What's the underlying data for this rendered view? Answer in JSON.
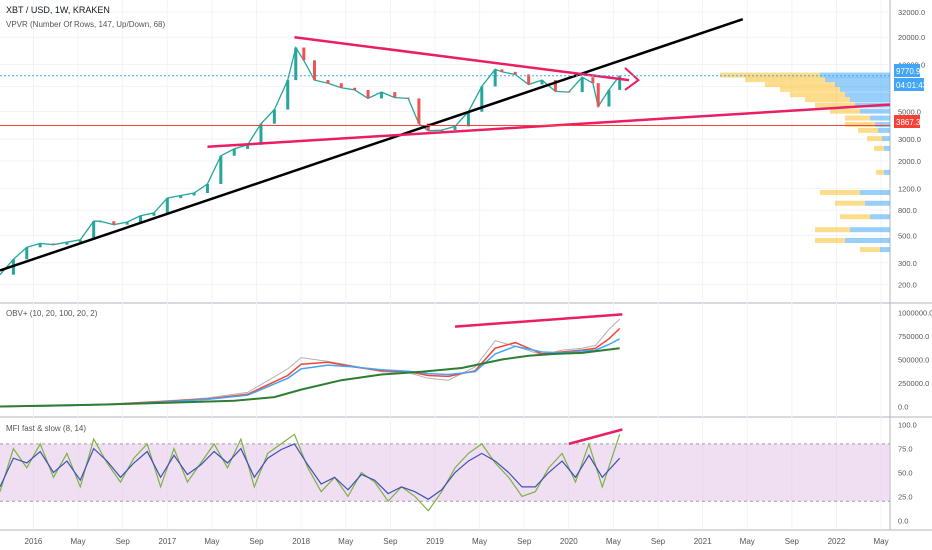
{
  "header": {
    "title": "XBT / USD, 1W, KRAKEN",
    "vpvr_label": "VPVR (Number Of Rows, 147, Up/Down, 68)",
    "obv_label": "OBV+ (10, 20, 100, 20, 2)",
    "mfi_label": "MFI fast & slow (8, 14)"
  },
  "colors": {
    "up_candle": "#26a69a",
    "down_candle": "#ef5350",
    "trendline": "#e91e63",
    "support_line": "#000000",
    "vpvr_up": "#fbc02d",
    "vpvr_down": "#42a5f5",
    "price_badge": "#42a5f5",
    "level_badge": "#f44336",
    "mfi_band": "#e1bee7"
  },
  "chart_data": [
    {
      "type": "line",
      "panel": "price",
      "log_scale": true,
      "x_tick_labels": [
        "2016",
        "May",
        "Sep",
        "2017",
        "May",
        "Sep",
        "2018",
        "May",
        "Sep",
        "2019",
        "May",
        "Sep",
        "2020",
        "May",
        "Sep",
        "2021",
        "May",
        "Sep",
        "2022",
        "May"
      ],
      "y_tick_labels": [
        "32000.0",
        "20000.0",
        "12000.0",
        "8000.0",
        "5000.0",
        "3000.0",
        "2000.0",
        "1200.0",
        "800.0",
        "500.0",
        "300.0",
        "200.0"
      ],
      "y_ticks": [
        32000,
        20000,
        12000,
        8000,
        5000,
        3000,
        2000,
        1200,
        800,
        500,
        300,
        200
      ],
      "ylim": [
        150,
        40000
      ],
      "xlim": [
        2015.75,
        2022.4
      ],
      "price_series": {
        "x": [
          2015.75,
          2015.85,
          2015.95,
          2016.05,
          2016.15,
          2016.25,
          2016.35,
          2016.45,
          2016.5,
          2016.6,
          2016.7,
          2016.8,
          2016.9,
          2017.0,
          2017.1,
          2017.2,
          2017.3,
          2017.4,
          2017.5,
          2017.6,
          2017.7,
          2017.8,
          2017.9,
          2017.96,
          2018.02,
          2018.1,
          2018.2,
          2018.3,
          2018.4,
          2018.5,
          2018.6,
          2018.7,
          2018.8,
          2018.88,
          2018.95,
          2019.05,
          2019.15,
          2019.25,
          2019.35,
          2019.45,
          2019.5,
          2019.6,
          2019.7,
          2019.8,
          2019.9,
          2020.0,
          2020.1,
          2020.18,
          2020.22,
          2020.3,
          2020.38
        ],
        "y": [
          240,
          320,
          400,
          430,
          420,
          440,
          460,
          650,
          650,
          610,
          640,
          720,
          760,
          1000,
          1050,
          1100,
          1300,
          2200,
          2500,
          2700,
          4000,
          5200,
          9000,
          16500,
          13000,
          9000,
          8500,
          7800,
          7500,
          6400,
          7200,
          6500,
          6400,
          4000,
          3500,
          3550,
          3800,
          5000,
          8000,
          11000,
          10500,
          10000,
          8300,
          9000,
          7300,
          7200,
          9500,
          8500,
          5500,
          7500,
          9770.9
        ]
      },
      "last_price": "9770.9",
      "countdown": "04:01:43",
      "level_price": "3867.3"
    },
    {
      "type": "line",
      "panel": "obv",
      "y_tick_labels": [
        "1000000.0",
        "750000.0",
        "500000.0",
        "250000.0",
        "0.0"
      ],
      "y_ticks": [
        1000000,
        750000,
        500000,
        250000,
        0
      ],
      "ylim": [
        -80000,
        1080000
      ],
      "series": [
        {
          "x": [
            2015.75,
            2016.2,
            2016.6,
            2017.0,
            2017.3,
            2017.6,
            2017.9,
            2018.0,
            2018.2,
            2018.4,
            2018.6,
            2018.8,
            2018.95,
            2019.1,
            2019.3,
            2019.45,
            2019.6,
            2019.8,
            2019.95,
            2020.1,
            2020.2,
            2020.3,
            2020.38
          ],
          "y": [
            0,
            10000,
            30000,
            60000,
            90000,
            150000,
            400000,
            520000,
            480000,
            430000,
            370000,
            360000,
            300000,
            280000,
            420000,
            700000,
            640000,
            550000,
            600000,
            620000,
            650000,
            820000,
            930000
          ]
        },
        {
          "x": [
            2015.75,
            2016.2,
            2016.6,
            2017.0,
            2017.3,
            2017.6,
            2017.9,
            2018.0,
            2018.2,
            2018.4,
            2018.6,
            2018.8,
            2018.95,
            2019.1,
            2019.3,
            2019.45,
            2019.6,
            2019.8,
            2019.95,
            2020.1,
            2020.2,
            2020.3,
            2020.38
          ],
          "y": [
            0,
            8000,
            25000,
            55000,
            80000,
            130000,
            330000,
            450000,
            470000,
            420000,
            380000,
            370000,
            330000,
            320000,
            380000,
            620000,
            680000,
            560000,
            580000,
            600000,
            620000,
            720000,
            830000
          ]
        },
        {
          "x": [
            2015.75,
            2016.2,
            2016.6,
            2017.0,
            2017.3,
            2017.6,
            2017.9,
            2018.0,
            2018.2,
            2018.4,
            2018.6,
            2018.8,
            2018.95,
            2019.1,
            2019.3,
            2019.45,
            2019.6,
            2019.8,
            2019.95,
            2020.1,
            2020.2,
            2020.3,
            2020.38
          ],
          "y": [
            0,
            7000,
            22000,
            50000,
            75000,
            120000,
            300000,
            400000,
            440000,
            420000,
            390000,
            375000,
            350000,
            340000,
            370000,
            560000,
            640000,
            580000,
            570000,
            590000,
            600000,
            660000,
            720000
          ]
        },
        {
          "x": [
            2015.75,
            2016.5,
            2017.0,
            2017.5,
            2017.8,
            2018.0,
            2018.3,
            2018.6,
            2018.9,
            2019.2,
            2019.5,
            2019.7,
            2019.9,
            2020.1,
            2020.38
          ],
          "y": [
            0,
            20000,
            40000,
            60000,
            100000,
            180000,
            280000,
            340000,
            370000,
            410000,
            500000,
            540000,
            560000,
            570000,
            620000
          ]
        }
      ]
    },
    {
      "type": "line",
      "panel": "mfi",
      "y_tick_labels": [
        "100.0",
        "75.0",
        "50.0",
        "25.0",
        "0.0"
      ],
      "y_ticks": [
        100,
        75,
        50,
        25,
        0
      ],
      "ylim": [
        -8,
        106
      ],
      "band": [
        20,
        80
      ],
      "series": [
        {
          "x": [
            2015.75,
            2015.85,
            2015.95,
            2016.05,
            2016.15,
            2016.25,
            2016.35,
            2016.45,
            2016.55,
            2016.65,
            2016.75,
            2016.85,
            2016.95,
            2017.05,
            2017.15,
            2017.25,
            2017.35,
            2017.45,
            2017.55,
            2017.65,
            2017.75,
            2017.85,
            2017.95,
            2018.05,
            2018.15,
            2018.25,
            2018.35,
            2018.45,
            2018.55,
            2018.65,
            2018.75,
            2018.85,
            2018.95,
            2019.05,
            2019.15,
            2019.25,
            2019.35,
            2019.45,
            2019.55,
            2019.65,
            2019.75,
            2019.85,
            2019.95,
            2020.05,
            2020.15,
            2020.25,
            2020.38
          ],
          "y": [
            30,
            75,
            55,
            80,
            45,
            70,
            35,
            85,
            60,
            40,
            65,
            80,
            35,
            75,
            40,
            60,
            80,
            55,
            85,
            35,
            70,
            80,
            90,
            55,
            30,
            45,
            25,
            50,
            40,
            20,
            35,
            25,
            10,
            30,
            55,
            70,
            80,
            60,
            45,
            25,
            30,
            55,
            70,
            40,
            80,
            35,
            90
          ]
        },
        {
          "x": [
            2015.75,
            2015.85,
            2015.95,
            2016.05,
            2016.15,
            2016.25,
            2016.35,
            2016.45,
            2016.55,
            2016.65,
            2016.75,
            2016.85,
            2016.95,
            2017.05,
            2017.15,
            2017.25,
            2017.35,
            2017.45,
            2017.55,
            2017.65,
            2017.75,
            2017.85,
            2017.95,
            2018.05,
            2018.15,
            2018.25,
            2018.35,
            2018.45,
            2018.55,
            2018.65,
            2018.75,
            2018.85,
            2018.95,
            2019.05,
            2019.15,
            2019.25,
            2019.35,
            2019.45,
            2019.55,
            2019.65,
            2019.75,
            2019.85,
            2019.95,
            2020.05,
            2020.15,
            2020.25,
            2020.38
          ],
          "y": [
            35,
            65,
            60,
            72,
            50,
            62,
            42,
            75,
            62,
            45,
            60,
            72,
            45,
            68,
            48,
            58,
            72,
            60,
            75,
            45,
            65,
            74,
            80,
            58,
            38,
            45,
            32,
            48,
            42,
            28,
            35,
            30,
            22,
            32,
            50,
            62,
            70,
            62,
            50,
            35,
            35,
            50,
            62,
            45,
            68,
            45,
            65
          ]
        }
      ]
    }
  ]
}
